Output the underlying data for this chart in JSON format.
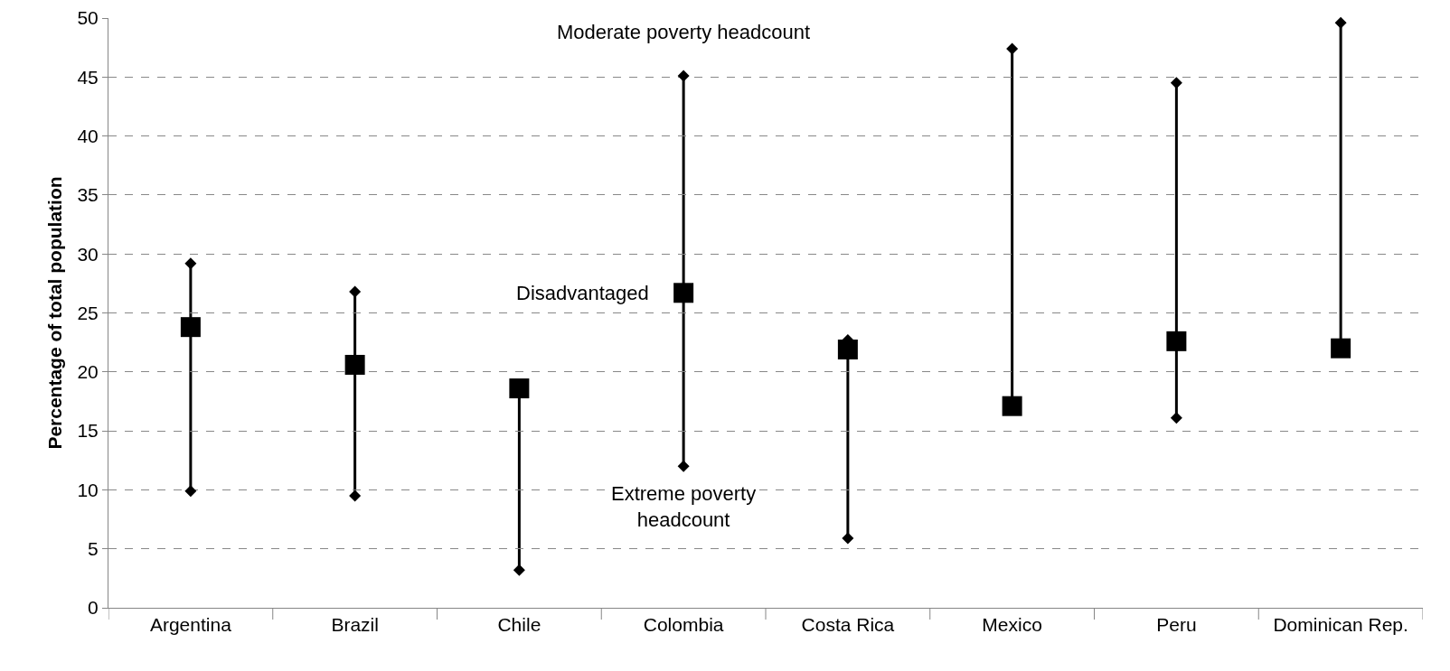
{
  "chart_data": {
    "type": "scatter",
    "ylabel": "Percentage of total population",
    "categories": [
      "Argentina",
      "Brazil",
      "Chile",
      "Colombia",
      "Costa Rica",
      "Mexico",
      "Peru",
      "Dominican Rep."
    ],
    "series": [
      {
        "name": "Moderate poverty headcount",
        "color": "#000000",
        "marker": "diamond",
        "values": [
          29.2,
          26.8,
          null,
          45.1,
          22.7,
          47.4,
          44.5,
          49.6
        ]
      },
      {
        "name": "Disadvantaged",
        "color": "#000000",
        "marker": "square",
        "values": [
          23.8,
          20.6,
          18.6,
          26.7,
          21.9,
          17.1,
          22.6,
          22.0
        ]
      },
      {
        "name": "Extreme poverty headcount",
        "color": "#000000",
        "marker": "diamond",
        "values": [
          9.9,
          9.5,
          3.2,
          12.0,
          5.9,
          null,
          16.1,
          null
        ]
      }
    ],
    "ylim": [
      0,
      50
    ],
    "yticks": [
      0,
      5,
      10,
      15,
      20,
      25,
      30,
      35,
      40,
      45,
      50
    ],
    "grid": "y",
    "legend": false
  }
}
